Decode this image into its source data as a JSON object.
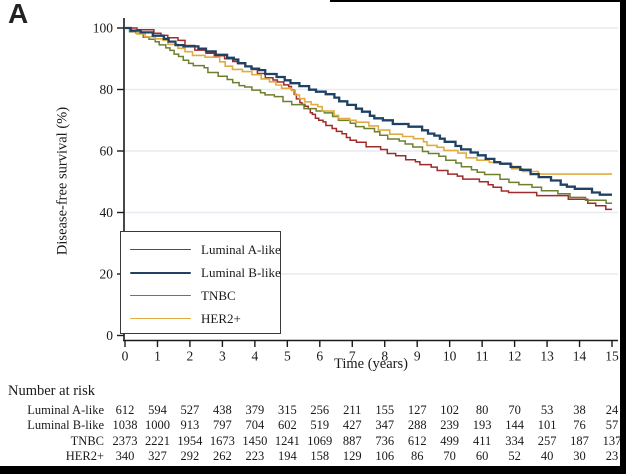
{
  "panel_label": "A",
  "chart_data": {
    "type": "line",
    "subtype": "kaplan-meier-step",
    "title": "",
    "xlabel": "Time (years)",
    "ylabel": "Disease-free survival (%)",
    "xlim": [
      0,
      15
    ],
    "ylim": [
      0,
      100
    ],
    "x_ticks": [
      0,
      1,
      2,
      3,
      4,
      5,
      6,
      7,
      8,
      9,
      10,
      11,
      12,
      13,
      14,
      15
    ],
    "y_ticks": [
      0,
      20,
      40,
      60,
      80,
      100
    ],
    "grid": "horizontal",
    "legend_position": "inside-bottom-left",
    "x": [
      0,
      1,
      2,
      3,
      4,
      5,
      6,
      7,
      8,
      9,
      10,
      11,
      12,
      13,
      14,
      15
    ],
    "series": [
      {
        "name": "Luminal A-like",
        "color": "#a02b2b",
        "width": 1.5,
        "values": [
          100,
          98.3,
          94.3,
          91.0,
          86.5,
          81.5,
          70.0,
          63.5,
          60.5,
          56.5,
          52.5,
          50.0,
          46.5,
          45.5,
          44.3,
          41.0
        ]
      },
      {
        "name": "Luminal B-like",
        "color": "#1e4164",
        "width": 2.3,
        "values": [
          100,
          97.5,
          94.0,
          91.3,
          86.8,
          83.0,
          79.3,
          75.0,
          70.0,
          67.9,
          63.0,
          58.6,
          54.8,
          51.5,
          47.7,
          45.8
        ]
      },
      {
        "name": "TNBC",
        "color": "#6e7f2f",
        "width": 1.5,
        "values": [
          100,
          95.5,
          88.5,
          84.3,
          79.8,
          76.1,
          73.0,
          69.0,
          65.1,
          61.3,
          57.0,
          53.1,
          49.8,
          47.1,
          44.9,
          43.0
        ]
      },
      {
        "name": "HER2+",
        "color": "#e0ac41",
        "width": 1.6,
        "values": [
          100,
          96.5,
          92.3,
          89.0,
          84.8,
          80.4,
          74.4,
          70.0,
          66.8,
          64.0,
          60.2,
          57.0,
          54.2,
          52.5,
          52.5,
          52.5
        ]
      }
    ]
  },
  "risk_table": {
    "title": "Number at risk",
    "rows": [
      {
        "label": "Luminal A-like",
        "values": [
          612,
          594,
          527,
          438,
          379,
          315,
          256,
          211,
          155,
          127,
          102,
          80,
          70,
          53,
          38,
          24
        ]
      },
      {
        "label": "Luminal B-like",
        "values": [
          1038,
          1000,
          913,
          797,
          704,
          602,
          519,
          427,
          347,
          288,
          239,
          193,
          144,
          101,
          76,
          57
        ]
      },
      {
        "label": "TNBC",
        "values": [
          2373,
          2221,
          1954,
          1673,
          1450,
          1241,
          1069,
          887,
          736,
          612,
          499,
          411,
          334,
          257,
          187,
          137
        ]
      },
      {
        "label": "HER2+",
        "values": [
          340,
          327,
          292,
          262,
          223,
          194,
          158,
          129,
          106,
          86,
          70,
          60,
          52,
          40,
          30,
          23
        ]
      }
    ]
  },
  "colors": {
    "grid": "#e6ecf1",
    "axis": "#1a1a1a",
    "text": "#1a1a1a",
    "legend_border": "#3a3a3a",
    "frame": "#000000"
  }
}
